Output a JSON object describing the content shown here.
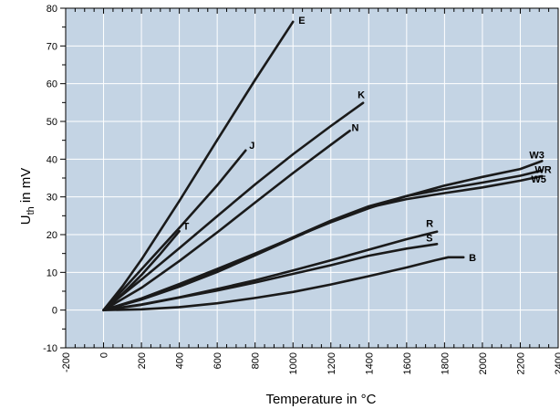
{
  "chart_data": {
    "type": "line",
    "title": "",
    "xlabel": "Temperature in °C",
    "ylabel_main": "U",
    "ylabel_sub": "th",
    "ylabel_rest": " in mV",
    "xlim": [
      -200,
      2400
    ],
    "ylim": [
      -10,
      80
    ],
    "xticks": [
      -200,
      0,
      200,
      400,
      600,
      800,
      1000,
      1200,
      1400,
      1600,
      1800,
      2000,
      2200,
      2400
    ],
    "yticks": [
      -10,
      0,
      10,
      20,
      30,
      40,
      50,
      60,
      70,
      80
    ],
    "grid": true,
    "colors": {
      "plot_background": "#c4d4e4",
      "grid": "#ffffff",
      "line": "#1a1a1a"
    },
    "series": [
      {
        "name": "E",
        "x": [
          0,
          100,
          200,
          400,
          600,
          800,
          1000
        ],
        "y": [
          0,
          6.3,
          13.4,
          28.9,
          45.1,
          61.0,
          76.4
        ]
      },
      {
        "name": "J",
        "x": [
          0,
          100,
          200,
          400,
          600,
          750
        ],
        "y": [
          0,
          5.3,
          10.8,
          21.8,
          33.1,
          42.3
        ]
      },
      {
        "name": "K",
        "x": [
          0,
          200,
          400,
          600,
          800,
          1000,
          1200,
          1370
        ],
        "y": [
          0,
          8.1,
          16.4,
          24.9,
          33.3,
          41.3,
          48.8,
          54.9
        ]
      },
      {
        "name": "N",
        "x": [
          0,
          200,
          400,
          600,
          800,
          1000,
          1200,
          1300
        ],
        "y": [
          0,
          5.9,
          13.0,
          20.6,
          28.5,
          36.3,
          43.8,
          47.5
        ]
      },
      {
        "name": "T",
        "x": [
          0,
          100,
          200,
          300,
          400
        ],
        "y": [
          0,
          4.3,
          9.3,
          14.9,
          20.9
        ]
      },
      {
        "name": "W3",
        "x": [
          0,
          200,
          400,
          600,
          800,
          1000,
          1200,
          1400,
          1600,
          1800,
          2000,
          2200,
          2315
        ],
        "y": [
          0,
          3.1,
          6.9,
          10.9,
          15.0,
          19.2,
          23.3,
          27.0,
          30.2,
          33.0,
          35.3,
          37.4,
          39.5
        ]
      },
      {
        "name": "WR",
        "x": [
          0,
          200,
          400,
          600,
          800,
          1000,
          1200,
          1400,
          1600,
          1800,
          2000,
          2200,
          2315
        ],
        "y": [
          0,
          3.0,
          6.5,
          10.4,
          14.7,
          19.3,
          23.7,
          27.5,
          30.2,
          32.1,
          33.8,
          35.6,
          37.0
        ]
      },
      {
        "name": "W5",
        "x": [
          0,
          200,
          400,
          600,
          800,
          1000,
          1200,
          1400,
          1600,
          1800,
          2000,
          2200,
          2315
        ],
        "y": [
          0,
          2.8,
          6.2,
          10.1,
          14.5,
          19.0,
          23.5,
          27.2,
          29.4,
          31.0,
          32.5,
          34.3,
          35.5
        ]
      },
      {
        "name": "R",
        "x": [
          0,
          200,
          400,
          600,
          800,
          1000,
          1200,
          1400,
          1600,
          1760
        ],
        "y": [
          0,
          1.5,
          3.4,
          5.6,
          7.9,
          10.5,
          13.2,
          16.0,
          18.8,
          20.8
        ]
      },
      {
        "name": "S",
        "x": [
          0,
          200,
          400,
          600,
          800,
          1000,
          1200,
          1400,
          1600,
          1760
        ],
        "y": [
          0,
          1.4,
          3.3,
          5.2,
          7.3,
          9.6,
          11.9,
          14.4,
          16.3,
          17.5
        ]
      },
      {
        "name": "B",
        "x": [
          0,
          200,
          400,
          600,
          800,
          1000,
          1200,
          1400,
          1600,
          1750,
          1820,
          1900
        ],
        "y": [
          0,
          0.2,
          0.8,
          1.8,
          3.2,
          4.8,
          6.8,
          9.0,
          11.3,
          13.2,
          14.0,
          14.0
        ]
      }
    ]
  }
}
